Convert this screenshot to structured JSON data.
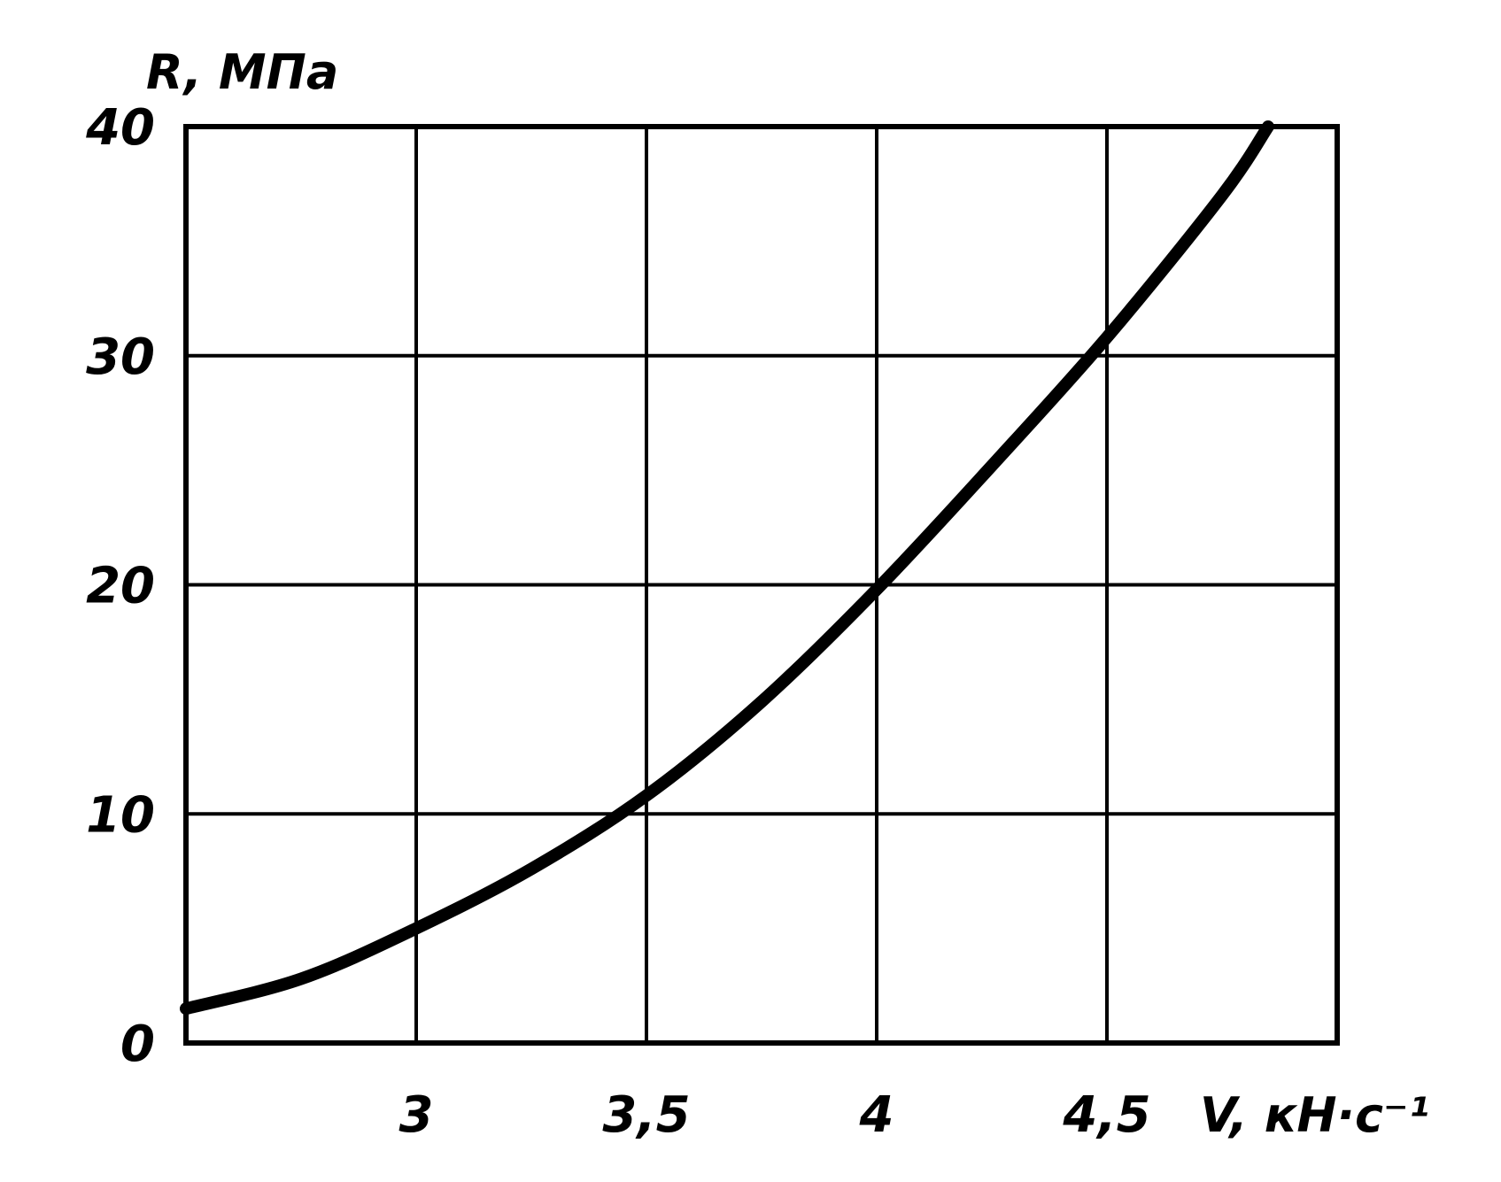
{
  "chart_data": {
    "type": "line",
    "title": "",
    "xlabel": "V, кН·с⁻¹",
    "ylabel": "R, МПа",
    "xlim": [
      2.5,
      5.0
    ],
    "ylim": [
      0,
      40
    ],
    "x_ticks": [
      "3",
      "3,5",
      "4",
      "4,5"
    ],
    "y_ticks": [
      "0",
      "10",
      "20",
      "30",
      "40"
    ],
    "grid": true,
    "legend": "none",
    "series": [
      {
        "x": [
          2.5,
          2.75,
          3.0,
          3.25,
          3.5,
          3.75,
          4.0,
          4.25,
          4.5,
          4.75,
          4.85
        ],
        "y": [
          1.5,
          2.8,
          5.0,
          7.6,
          10.8,
          14.9,
          19.8,
          25.2,
          30.8,
          37.0,
          40.0
        ]
      }
    ],
    "colors": {
      "line": "#000000",
      "grid": "#000000",
      "background": "#ffffff"
    }
  }
}
